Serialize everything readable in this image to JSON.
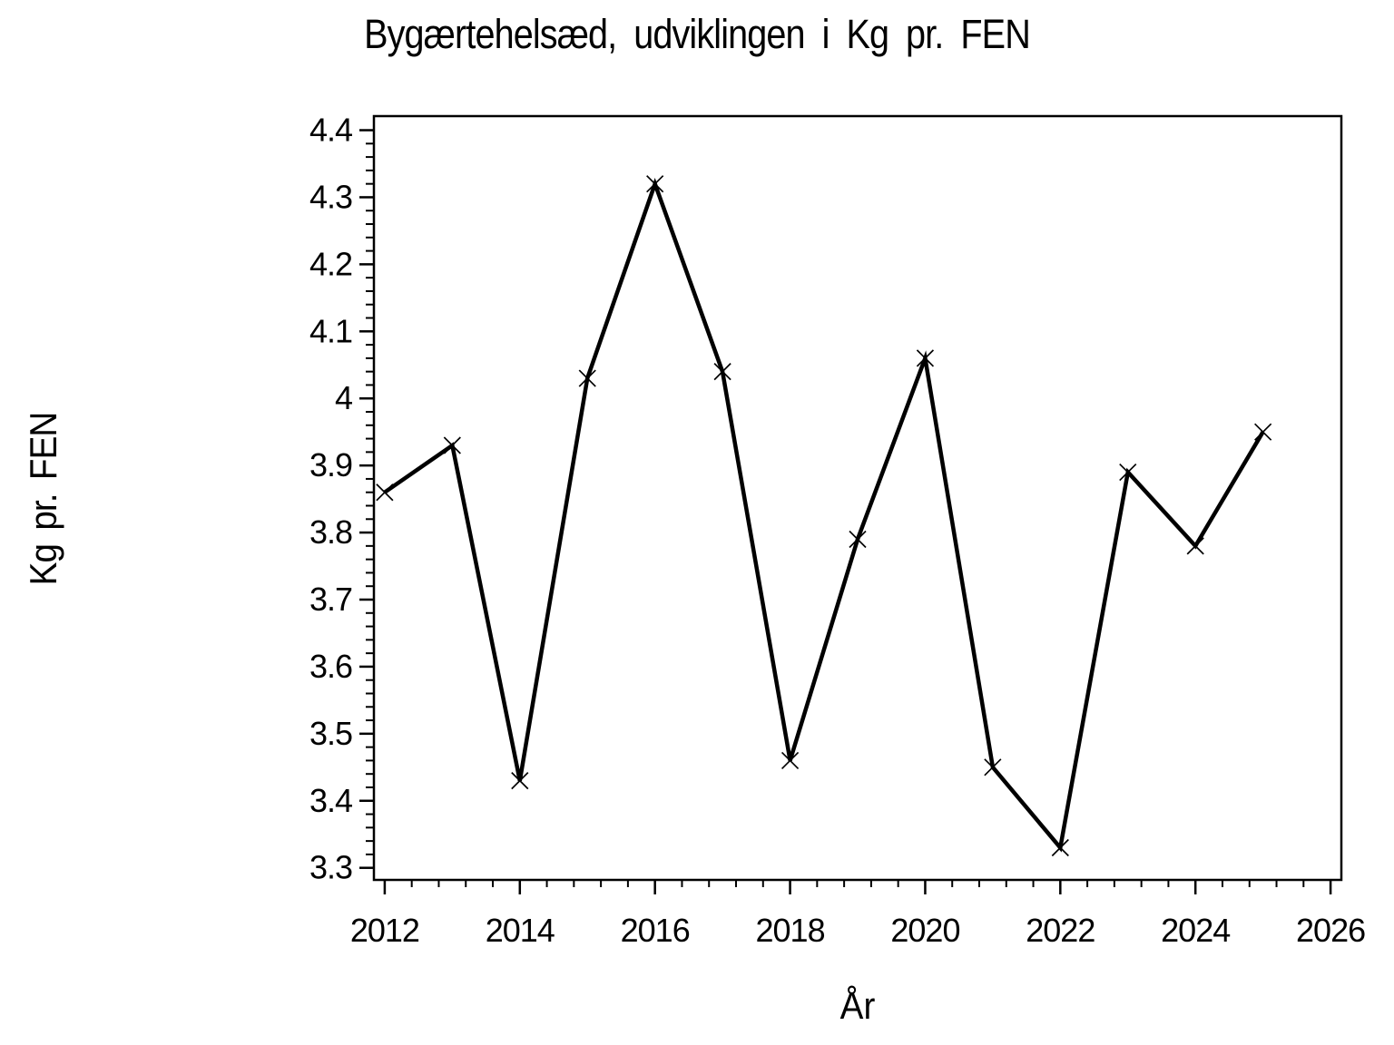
{
  "page": {
    "background": "#ffffff",
    "foreground": "#000000"
  },
  "chart_data": {
    "type": "line",
    "title": "Bygærtehelsæd, udviklingen i Kg pr. FEN",
    "xlabel": "År",
    "ylabel": "Kg pr. FEN",
    "x": [
      2012,
      2013,
      2014,
      2015,
      2016,
      2017,
      2018,
      2019,
      2020,
      2021,
      2022,
      2023,
      2024,
      2025
    ],
    "y": [
      3.86,
      3.93,
      3.43,
      4.03,
      4.32,
      4.04,
      3.46,
      3.79,
      4.06,
      3.45,
      3.33,
      3.89,
      3.78,
      3.95
    ],
    "series_name": "Kg pr. FEN",
    "line_color": "#000000",
    "marker": "x-cross",
    "grid": false,
    "legend": false,
    "xlim": [
      2011.84,
      2026.16
    ],
    "ylim": [
      3.282,
      4.421
    ],
    "x_major_ticks": [
      2012,
      2014,
      2016,
      2018,
      2020,
      2022,
      2024,
      2026
    ],
    "x_tick_labels": [
      "2012",
      "2014",
      "2016",
      "2018",
      "2020",
      "2022",
      "2024",
      "2026"
    ],
    "x_minor_ticks_between": 4,
    "y_major_ticks": [
      3.3,
      3.4,
      3.5,
      3.6,
      3.7,
      3.8,
      3.9,
      4.0,
      4.1,
      4.2,
      4.3,
      4.4
    ],
    "y_tick_labels": [
      "3.3",
      "3.4",
      "3.5",
      "3.6",
      "3.7",
      "3.8",
      "3.9",
      "4",
      "4.1",
      "4.2",
      "4.3",
      "4.4"
    ],
    "y_minor_ticks_between": 4
  }
}
